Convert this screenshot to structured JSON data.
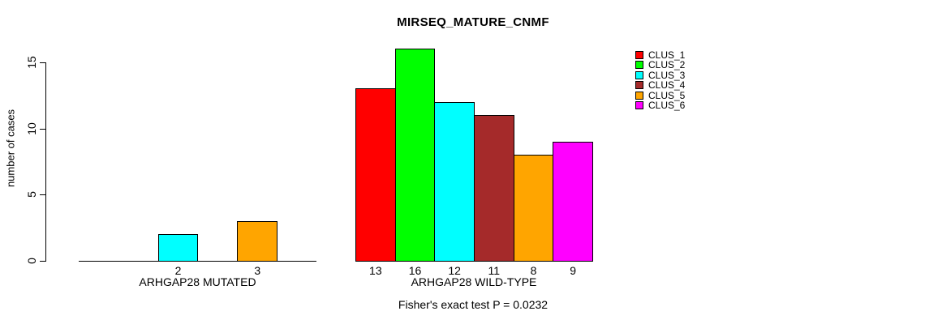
{
  "chart_data": {
    "type": "bar",
    "title": "MIRSEQ_MATURE_CNMF",
    "ylabel": "number of cases",
    "ylim": [
      0,
      16.5
    ],
    "yticks": [
      0,
      5,
      10,
      15
    ],
    "grid": false,
    "bar_gap": 0,
    "legend_position": "right",
    "categories": [
      "CLUS_1",
      "CLUS_2",
      "CLUS_3",
      "CLUS_4",
      "CLUS_5",
      "CLUS_6"
    ],
    "colors": [
      "#ff0000",
      "#00ff00",
      "#00ffff",
      "#a52a2a",
      "#ffa500",
      "#ff00ff"
    ],
    "groups": [
      {
        "label": "ARHGAP28 MUTATED",
        "values": [
          0,
          0,
          2,
          0,
          3,
          0
        ]
      },
      {
        "label": "ARHGAP28 WILD-TYPE",
        "values": [
          13,
          16,
          12,
          11,
          8,
          9
        ]
      }
    ],
    "value_labels": "shown under each nonzero bar",
    "annotation": "Fisher's exact test P = 0.0232"
  }
}
